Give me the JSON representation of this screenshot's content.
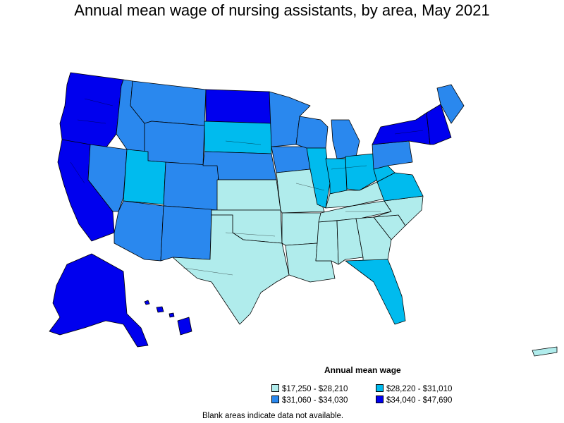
{
  "title": "Annual mean wage of nursing assistants, by area, May 2021",
  "legend": {
    "title": "Annual mean wage",
    "items": [
      {
        "label": "$17,250 - $28,210",
        "color": "#b0ecec"
      },
      {
        "label": "$28,220 - $31,010",
        "color": "#00bbee"
      },
      {
        "label": "$31,060 - $34,030",
        "color": "#2a88ee"
      },
      {
        "label": "$34,040 - $47,690",
        "color": "#0000ee"
      }
    ]
  },
  "note": "Blank areas indicate data not available.",
  "regions": [
    {
      "name": "Pacific Northwest",
      "color": "#0000ee"
    },
    {
      "name": "California coast",
      "color": "#0000ee"
    },
    {
      "name": "Nevada",
      "color": "#2a88ee"
    },
    {
      "name": "Idaho",
      "color": "#2a88ee"
    },
    {
      "name": "Montana",
      "color": "#2a88ee"
    },
    {
      "name": "Wyoming",
      "color": "#2a88ee"
    },
    {
      "name": "Utah",
      "color": "#00bbee"
    },
    {
      "name": "Colorado",
      "color": "#2a88ee"
    },
    {
      "name": "Arizona",
      "color": "#2a88ee"
    },
    {
      "name": "New Mexico",
      "color": "#2a88ee"
    },
    {
      "name": "North Dakota",
      "color": "#0000ee"
    },
    {
      "name": "South Dakota",
      "color": "#00bbee"
    },
    {
      "name": "Nebraska",
      "color": "#2a88ee"
    },
    {
      "name": "Kansas",
      "color": "#b0ecec"
    },
    {
      "name": "Oklahoma",
      "color": "#b0ecec"
    },
    {
      "name": "Texas",
      "color": "#b0ecec"
    },
    {
      "name": "Minnesota",
      "color": "#2a88ee"
    },
    {
      "name": "Iowa",
      "color": "#2a88ee"
    },
    {
      "name": "Missouri",
      "color": "#b0ecec"
    },
    {
      "name": "Arkansas",
      "color": "#b0ecec"
    },
    {
      "name": "Louisiana",
      "color": "#b0ecec"
    },
    {
      "name": "Wisconsin",
      "color": "#2a88ee"
    },
    {
      "name": "Illinois",
      "color": "#00bbee"
    },
    {
      "name": "Michigan",
      "color": "#2a88ee"
    },
    {
      "name": "Indiana",
      "color": "#00bbee"
    },
    {
      "name": "Ohio",
      "color": "#00bbee"
    },
    {
      "name": "Kentucky",
      "color": "#b0ecec"
    },
    {
      "name": "Tennessee",
      "color": "#b0ecec"
    },
    {
      "name": "Mississippi",
      "color": "#b0ecec"
    },
    {
      "name": "Alabama",
      "color": "#b0ecec"
    },
    {
      "name": "Georgia",
      "color": "#b0ecec"
    },
    {
      "name": "Florida",
      "color": "#00bbee"
    },
    {
      "name": "South Carolina",
      "color": "#b0ecec"
    },
    {
      "name": "North Carolina",
      "color": "#b0ecec"
    },
    {
      "name": "Virginia",
      "color": "#00bbee"
    },
    {
      "name": "West Virginia",
      "color": "#00bbee"
    },
    {
      "name": "Pennsylvania",
      "color": "#2a88ee"
    },
    {
      "name": "New York",
      "color": "#0000ee"
    },
    {
      "name": "New England",
      "color": "#0000ee"
    },
    {
      "name": "Maine",
      "color": "#2a88ee"
    },
    {
      "name": "Alaska",
      "color": "#0000ee"
    },
    {
      "name": "Hawaii",
      "color": "#0000ee"
    },
    {
      "name": "Puerto Rico",
      "color": "#b0ecec"
    }
  ]
}
